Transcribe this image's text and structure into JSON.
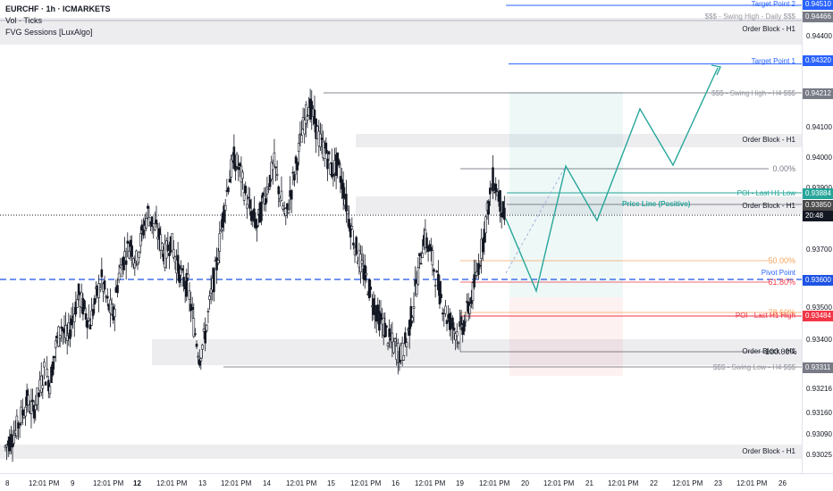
{
  "legend": {
    "symbol_line": "EURCHF · 1h · ICMARKETS",
    "indicator_1": "Vol · Ticks",
    "indicator_2": "FVG Sessions [LuxAlgo]"
  },
  "price_axis": {
    "ticks": [
      "0.94400",
      "0.94100",
      "0.94000",
      "0.93900",
      "0.93700",
      "0.93500",
      "0.93400",
      "0.93216",
      "0.93160",
      "0.93090",
      "0.93025"
    ],
    "badges": {
      "target_point_2": "0.94510",
      "swing_high_daily": "0.94466",
      "target_point_1": "0.94320",
      "swing_high_h4": "0.94212",
      "poi_last_low": "0.93884",
      "current_price": "0.93850",
      "countdown": "20:48",
      "pivot_point": "0.93600",
      "poi_last_high": "0.93484",
      "swing_low_h4": "0.93311"
    }
  },
  "annotations": {
    "target_point_2": "Target Point 2",
    "swing_high_daily": "$$$ - Swing High - Daily $$$",
    "order_block_top": "Order Block - H1",
    "target_point_1": "Target Point 1",
    "swing_high_h4": "$$$ - Swing High - H4 $$$",
    "order_block_mid": "Order Block - H1",
    "fib_0": "0.00%",
    "poi_last_low": "POI - Last H1 Low",
    "order_block_price": "Order Block - H1",
    "price_line": "Price Line (Positive)",
    "fib_50": "50.00%",
    "pivot_point": "Pivot Point",
    "fib_618": "61.80%",
    "fib_786": "78.60%",
    "poi_last_high": "POI - Last H1 High",
    "fib_100_overlap": "100.00%",
    "order_block_low": "Order Block - H1",
    "swing_low_h4": "$$$ - Swing Low - H4 $$$",
    "order_block_bottom": "Order Block - H1"
  },
  "time_axis": {
    "ticks": [
      {
        "label": "8",
        "bold": false
      },
      {
        "label": "12:01 PM",
        "bold": false
      },
      {
        "label": "9",
        "bold": false
      },
      {
        "label": "12:01 PM",
        "bold": false
      },
      {
        "label": "12",
        "bold": true
      },
      {
        "label": "12:01 PM",
        "bold": false
      },
      {
        "label": "13",
        "bold": false
      },
      {
        "label": "12:01 PM",
        "bold": false
      },
      {
        "label": "14",
        "bold": false
      },
      {
        "label": "12:01 PM",
        "bold": false
      },
      {
        "label": "15",
        "bold": false
      },
      {
        "label": "12:01 PM",
        "bold": false
      },
      {
        "label": "16",
        "bold": false
      },
      {
        "label": "12:01 PM",
        "bold": false
      },
      {
        "label": "19",
        "bold": false
      },
      {
        "label": "12:01 PM",
        "bold": false
      },
      {
        "label": "20",
        "bold": false
      },
      {
        "label": "12:01 PM",
        "bold": false
      },
      {
        "label": "21",
        "bold": false
      },
      {
        "label": "12:01 PM",
        "bold": false
      },
      {
        "label": "22",
        "bold": false
      },
      {
        "label": "12:01 PM",
        "bold": false
      },
      {
        "label": "23",
        "bold": false
      },
      {
        "label": "12:01 PM",
        "bold": false
      },
      {
        "label": "26",
        "bold": false
      }
    ]
  },
  "colors": {
    "bull": "#131722",
    "bear": "#131722",
    "target_blue": "#2962ff",
    "pivot_blue": "#1e53e5",
    "fib_orange": "#f7a35c",
    "fib_red": "#f23645",
    "poi_green": "#26a69a",
    "zone_gray": "#ededf0",
    "badge_dark": "#4a4a4a"
  },
  "chart_data": {
    "type": "candlestick",
    "symbol": "EURCHF",
    "timeframe": "1h",
    "ylim": [
      0.9302,
      0.9452
    ],
    "levels": {
      "target_point_2": 0.9451,
      "swing_high_daily": 0.94466,
      "target_point_1": 0.9432,
      "swing_high_h4": 0.94212,
      "poi_last_low": 0.93884,
      "current_price": 0.9385,
      "pivot_point": 0.936,
      "poi_last_high": 0.93484,
      "swing_low_h4": 0.93311
    },
    "closes": [
      0.9307,
      0.931,
      0.9315,
      0.932,
      0.9317,
      0.9322,
      0.933,
      0.9326,
      0.9338,
      0.9345,
      0.934,
      0.9348,
      0.9355,
      0.935,
      0.9346,
      0.9354,
      0.936,
      0.9352,
      0.9348,
      0.9362,
      0.9368,
      0.9372,
      0.9366,
      0.9375,
      0.9382,
      0.9378,
      0.9374,
      0.9368,
      0.9373,
      0.9366,
      0.936,
      0.9358,
      0.9345,
      0.9335,
      0.9342,
      0.9355,
      0.9365,
      0.938,
      0.9392,
      0.94,
      0.9396,
      0.9388,
      0.9382,
      0.9378,
      0.9385,
      0.9392,
      0.9398,
      0.9388,
      0.938,
      0.939,
      0.94,
      0.941,
      0.9418,
      0.9412,
      0.9405,
      0.9402,
      0.9396,
      0.9398,
      0.939,
      0.938,
      0.9372,
      0.9365,
      0.936,
      0.9354,
      0.9348,
      0.9345,
      0.934,
      0.9338,
      0.9335,
      0.934,
      0.935,
      0.9362,
      0.9374,
      0.937,
      0.9362,
      0.9354,
      0.9348,
      0.9345,
      0.9342,
      0.9346,
      0.9352,
      0.936,
      0.937,
      0.9382,
      0.9393,
      0.9388,
      0.938
    ]
  }
}
